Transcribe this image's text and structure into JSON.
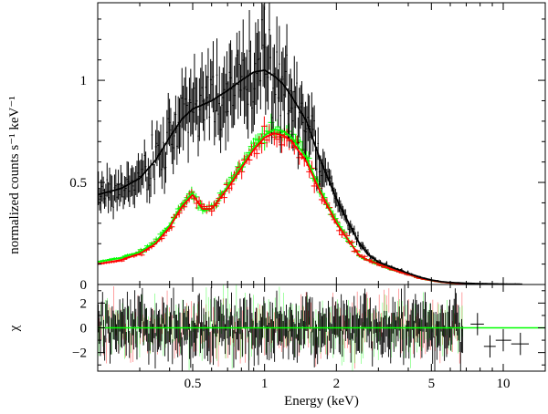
{
  "chart_data": [
    {
      "panel": "spectrum",
      "type": "line",
      "xscale": "log",
      "xlim": [
        0.2,
        15
      ],
      "ylim": [
        0,
        1.38
      ],
      "ylabel": "normalized counts s⁻¹ keV⁻¹",
      "yticks": [
        {
          "value": 0,
          "label": "0"
        },
        {
          "value": 0.5,
          "label": "0.5"
        },
        {
          "value": 1,
          "label": "1"
        }
      ],
      "series": [
        {
          "color": "#000000",
          "x": [
            0.2,
            0.25,
            0.3,
            0.35,
            0.4,
            0.45,
            0.5,
            0.55,
            0.6,
            0.7,
            0.8,
            0.9,
            1.0,
            1.1,
            1.2,
            1.3,
            1.5,
            1.7,
            2.0,
            2.3,
            2.5,
            2.7,
            3.0,
            3.5,
            4.0,
            4.5,
            5.0,
            5.5,
            6.0,
            7.0,
            8.0,
            10.0,
            12.0
          ],
          "y": [
            0.44,
            0.47,
            0.52,
            0.61,
            0.72,
            0.81,
            0.86,
            0.88,
            0.9,
            0.95,
            1.0,
            1.04,
            1.05,
            1.02,
            0.98,
            0.92,
            0.8,
            0.62,
            0.42,
            0.28,
            0.2,
            0.15,
            0.11,
            0.08,
            0.055,
            0.035,
            0.022,
            0.014,
            0.01,
            0.006,
            0.004,
            0.002,
            0.001
          ]
        },
        {
          "color": "#ff0000",
          "x": [
            0.2,
            0.25,
            0.3,
            0.35,
            0.4,
            0.45,
            0.5,
            0.55,
            0.6,
            0.7,
            0.8,
            0.9,
            1.0,
            1.1,
            1.2,
            1.3,
            1.5,
            1.7,
            2.0,
            2.3,
            2.5,
            2.7,
            3.0,
            3.5,
            4.0,
            4.5,
            5.0,
            5.5,
            6.0,
            7.0
          ],
          "y": [
            0.1,
            0.12,
            0.15,
            0.2,
            0.28,
            0.38,
            0.44,
            0.37,
            0.37,
            0.47,
            0.57,
            0.66,
            0.72,
            0.74,
            0.73,
            0.7,
            0.6,
            0.46,
            0.3,
            0.2,
            0.14,
            0.12,
            0.1,
            0.07,
            0.05,
            0.03,
            0.02,
            0.012,
            0.008,
            0.004
          ]
        },
        {
          "color": "#00ff00",
          "x": [
            0.2,
            0.25,
            0.3,
            0.35,
            0.4,
            0.45,
            0.5,
            0.55,
            0.6,
            0.7,
            0.8,
            0.9,
            1.0,
            1.1,
            1.2,
            1.3,
            1.5,
            1.7,
            2.0,
            2.3,
            2.5,
            2.7,
            3.0,
            3.5,
            4.0,
            4.5,
            5.0,
            5.5,
            6.0,
            7.0
          ],
          "y": [
            0.11,
            0.13,
            0.16,
            0.21,
            0.29,
            0.39,
            0.45,
            0.36,
            0.37,
            0.48,
            0.58,
            0.67,
            0.73,
            0.76,
            0.75,
            0.72,
            0.62,
            0.47,
            0.31,
            0.2,
            0.14,
            0.12,
            0.1,
            0.07,
            0.05,
            0.03,
            0.02,
            0.012,
            0.008,
            0.004
          ]
        }
      ]
    },
    {
      "panel": "residuals",
      "type": "line",
      "xscale": "log",
      "xlim": [
        0.2,
        15
      ],
      "ylim": [
        -3.5,
        3.5
      ],
      "xlabel": "Energy (keV)",
      "ylabel": "χ",
      "yticks": [
        {
          "value": -2,
          "label": "−2"
        },
        {
          "value": 0,
          "label": "0"
        },
        {
          "value": 2,
          "label": "2"
        }
      ],
      "xticks": [
        {
          "value": 0.5,
          "label": "0.5"
        },
        {
          "value": 1,
          "label": "1"
        },
        {
          "value": 2,
          "label": "2"
        },
        {
          "value": 5,
          "label": "5"
        },
        {
          "value": 10,
          "label": "10"
        }
      ],
      "zero_line_color": "#00ff00",
      "outliers": [
        {
          "x": 7.8,
          "y": 0.3,
          "xerr": [
            7.3,
            8.3
          ],
          "yerr": 0.9
        },
        {
          "x": 8.8,
          "y": -1.5,
          "xerr": [
            8.3,
            9.3
          ],
          "yerr": 0.9
        },
        {
          "x": 10.0,
          "y": -1.0,
          "xerr": [
            9.3,
            10.8
          ],
          "yerr": 0.9
        },
        {
          "x": 11.8,
          "y": -1.3,
          "xerr": [
            10.8,
            12.8
          ],
          "yerr": 0.9
        }
      ]
    }
  ]
}
